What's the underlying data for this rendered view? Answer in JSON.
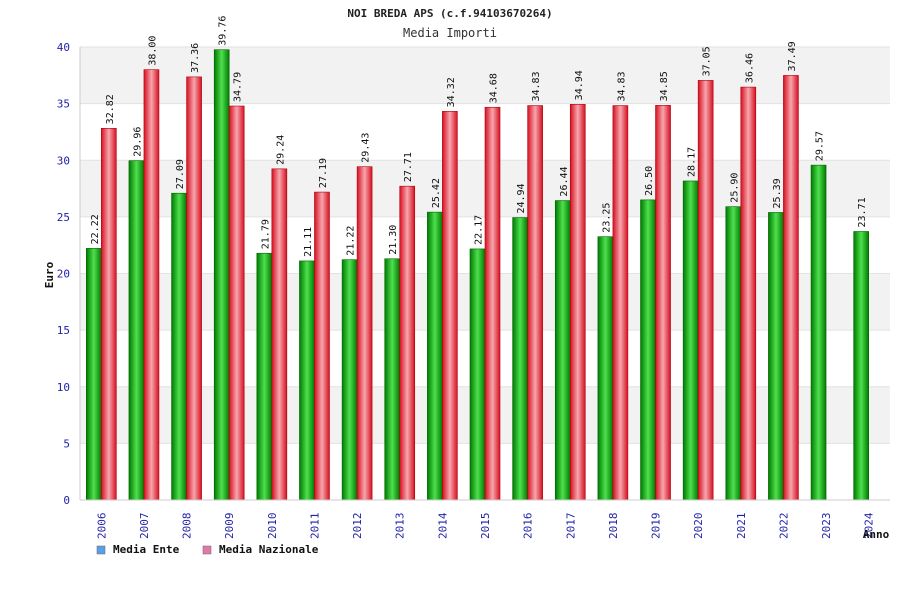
{
  "chart_data": {
    "type": "bar",
    "title": "NOI BREDA APS (c.f.94103670264)",
    "subtitle": "Media Importi",
    "ylabel": "Euro",
    "xlabel": "Anno",
    "ylim": [
      0,
      40
    ],
    "yticks": [
      0,
      5,
      10,
      15,
      20,
      25,
      30,
      35,
      40
    ],
    "grid": true,
    "legend_position": "bottom-left",
    "categories": [
      "2006",
      "2007",
      "2008",
      "2009",
      "2010",
      "2011",
      "2012",
      "2013",
      "2014",
      "2015",
      "2016",
      "2017",
      "2018",
      "2019",
      "2020",
      "2021",
      "2022",
      "2023",
      "2024"
    ],
    "series": [
      {
        "name": "Media Ente",
        "color": "#00b400",
        "legend_color": "#5aa0e6",
        "values": [
          22.22,
          29.96,
          27.09,
          39.76,
          21.79,
          21.11,
          21.22,
          21.3,
          25.42,
          22.17,
          24.94,
          26.44,
          23.25,
          26.5,
          28.17,
          25.9,
          25.39,
          29.57,
          23.71
        ],
        "labels": [
          "22.22",
          "29.96",
          "27.09",
          "39.76",
          "21.79",
          "21.11",
          "21.22",
          "21.30",
          "25.42",
          "22.17",
          "24.94",
          "26.44",
          "23.25",
          "26.50",
          "28.17",
          "25.90",
          "25.39",
          "29.57",
          "23.71"
        ]
      },
      {
        "name": "Media Nazionale",
        "color": "#ee2020",
        "legend_color": "#e07aa8",
        "values": [
          32.82,
          38.0,
          37.36,
          34.79,
          29.24,
          27.19,
          29.43,
          27.71,
          34.32,
          34.68,
          34.83,
          34.94,
          34.83,
          34.85,
          37.05,
          36.46,
          37.49,
          null,
          null
        ],
        "labels": [
          "32.82",
          "38.00",
          "37.36",
          "34.79",
          "29.24",
          "27.19",
          "29.43",
          "27.71",
          "34.32",
          "34.68",
          "34.83",
          "34.94",
          "34.83",
          "34.85",
          "37.05",
          "36.46",
          "37.49",
          null,
          null
        ]
      }
    ]
  }
}
